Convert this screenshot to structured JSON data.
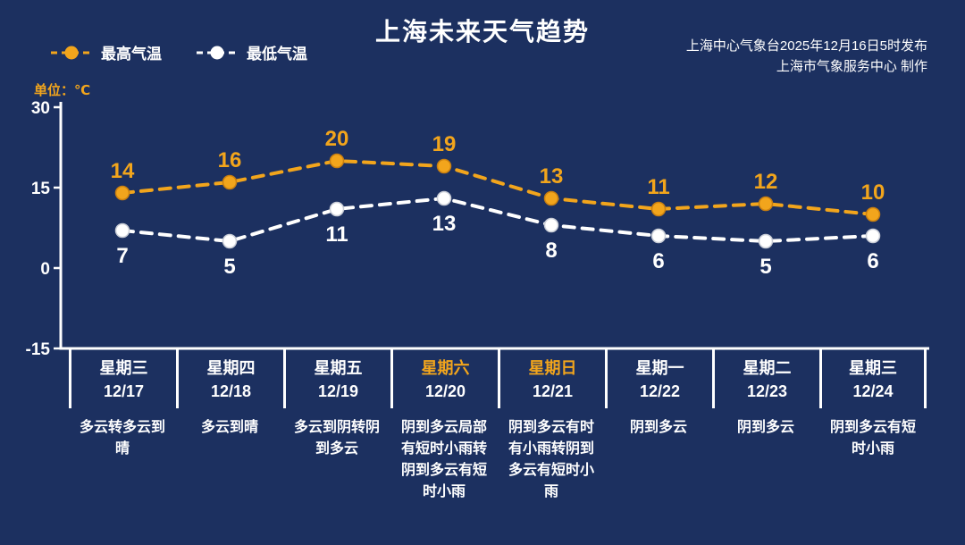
{
  "page": {
    "title": "上海未来天气趋势",
    "publisher_line1": "上海中心气象台2025年12月16日5时发布",
    "publisher_line2": "上海市气象服务中心  制作",
    "unit_label": "单位：℃"
  },
  "legend": {
    "max_label": "最高气温",
    "min_label": "最低气温"
  },
  "colors": {
    "background": "#1c3060",
    "accent_orange": "#f2a51c",
    "axis_white": "#ffffff"
  },
  "chart_data": {
    "type": "line",
    "title": "上海未来天气趋势",
    "ylabel": "℃",
    "ylim": [
      -15,
      30
    ],
    "yticks": [
      30,
      15,
      0,
      -15
    ],
    "grid": false,
    "line_style": "dashed",
    "markers": true,
    "legend_position": "top-left",
    "categories": [
      "12/17",
      "12/18",
      "12/19",
      "12/20",
      "12/21",
      "12/22",
      "12/23",
      "12/24"
    ],
    "series": [
      {
        "name": "最高气温",
        "color": "#f2a51c",
        "marker_stroke": "#c97f10",
        "values": [
          14,
          16,
          20,
          19,
          13,
          11,
          12,
          10
        ]
      },
      {
        "name": "最低气温",
        "color": "#ffffff",
        "marker_stroke": "#c9cdd6",
        "values": [
          7,
          5,
          11,
          13,
          8,
          6,
          5,
          6
        ]
      }
    ]
  },
  "days": [
    {
      "weekday": "星期三",
      "date": "12/17",
      "weather": "多云转多云到晴",
      "highlight": false
    },
    {
      "weekday": "星期四",
      "date": "12/18",
      "weather": "多云到晴",
      "highlight": false
    },
    {
      "weekday": "星期五",
      "date": "12/19",
      "weather": "多云到阴转阴到多云",
      "highlight": false
    },
    {
      "weekday": "星期六",
      "date": "12/20",
      "weather": "阴到多云局部有短时小雨转阴到多云有短时小雨",
      "highlight": true
    },
    {
      "weekday": "星期日",
      "date": "12/21",
      "weather": "阴到多云有时有小雨转阴到多云有短时小雨",
      "highlight": true
    },
    {
      "weekday": "星期一",
      "date": "12/22",
      "weather": "阴到多云",
      "highlight": false
    },
    {
      "weekday": "星期二",
      "date": "12/23",
      "weather": "阴到多云",
      "highlight": false
    },
    {
      "weekday": "星期三",
      "date": "12/24",
      "weather": "阴到多云有短时小雨",
      "highlight": false
    }
  ]
}
